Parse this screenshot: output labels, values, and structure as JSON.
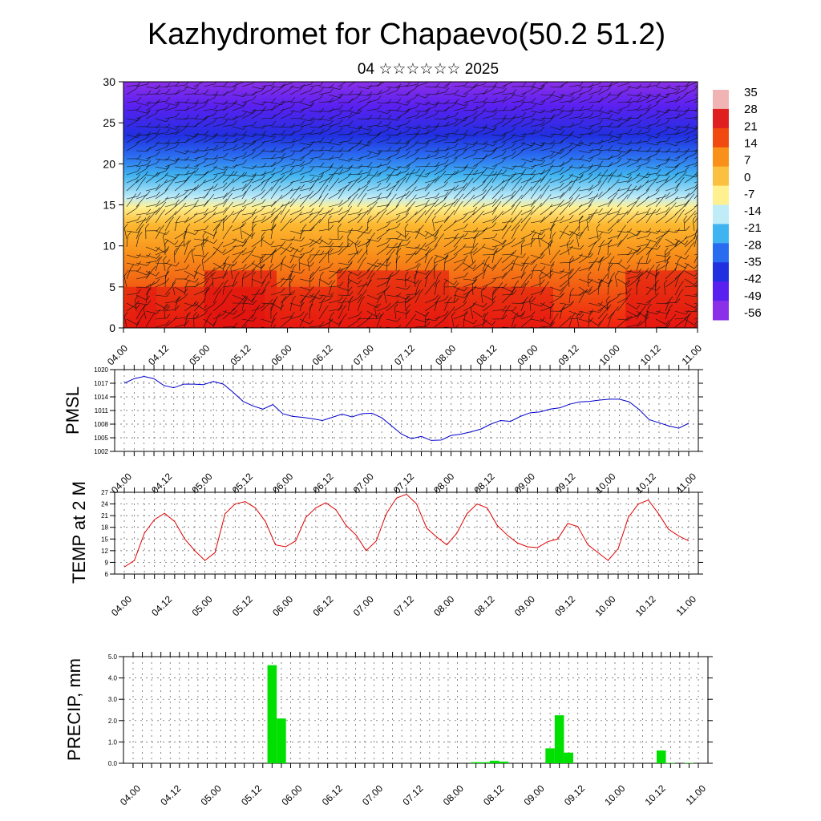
{
  "title": "Kazhydromet for Chapaevo(50.2 51.2)",
  "subtitle": "04 ☆☆☆☆☆☆ 2025",
  "x_tick_labels": [
    "04.00",
    "04.12",
    "05.00",
    "05.12",
    "06.00",
    "06.12",
    "07.00",
    "07.12",
    "08.00",
    "08.12",
    "09.00",
    "09.12",
    "10.00",
    "10.12",
    "11.00"
  ],
  "colorbar": {
    "labels": [
      "35",
      "28",
      "21",
      "14",
      "7",
      "0",
      "-7",
      "-14",
      "-21",
      "-28",
      "-35",
      "-42",
      "-49",
      "-56"
    ],
    "colors": [
      "#f0b4b4",
      "#e02020",
      "#f04a10",
      "#f8901a",
      "#fcc040",
      "#fff090",
      "#c0ecf8",
      "#40b4f0",
      "#2a6cf0",
      "#2030e0",
      "#5a20f0",
      "#8a30e8"
    ]
  },
  "chart_data": [
    {
      "type": "heatmap",
      "ylim": [
        0,
        30
      ],
      "y_ticks": [
        0,
        5,
        10,
        15,
        20,
        25,
        30
      ],
      "xlim": [
        0,
        168
      ],
      "description_levels": "temperature cross-section with wind barbs",
      "x_tick_labels": [
        "04.00",
        "04.12",
        "05.00",
        "05.12",
        "06.00",
        "06.12",
        "07.00",
        "07.12",
        "08.00",
        "08.12",
        "09.00",
        "09.12",
        "10.00",
        "10.12",
        "11.00"
      ]
    },
    {
      "type": "line",
      "ylabel": "PMSL",
      "ylim": [
        1002,
        1020
      ],
      "y_ticks": [
        1002,
        1005,
        1008,
        1011,
        1014,
        1017,
        1020
      ],
      "x_tick_labels": [
        "04.00",
        "04.12",
        "05.00",
        "05.12",
        "06.00",
        "06.12",
        "07.00",
        "07.12",
        "08.00",
        "08.12",
        "09.00",
        "09.12",
        "10.00",
        "10.12",
        "11.00"
      ],
      "series": [
        {
          "color": "#0000cc",
          "values": [
            1017,
            1018,
            1018.5,
            1018,
            1016.5,
            1016,
            1016.8,
            1016.8,
            1016.7,
            1017.4,
            1016.8,
            1015,
            1013,
            1012,
            1011.3,
            1012.3,
            1010.3,
            1009.7,
            1009.5,
            1009.2,
            1008.8,
            1009.5,
            1010.2,
            1009.6,
            1010.3,
            1010.4,
            1009.4,
            1007.6,
            1005.8,
            1004.8,
            1005.3,
            1004.4,
            1004.5,
            1005.5,
            1005.8,
            1006.3,
            1006.9,
            1008,
            1008.8,
            1008.6,
            1009.7,
            1010.5,
            1010.7,
            1011.3,
            1011.6,
            1012.4,
            1012.9,
            1013,
            1013.3,
            1013.5,
            1013.5,
            1012.9,
            1011.2,
            1009,
            1008.3,
            1007.6,
            1007.1,
            1008.2
          ]
        }
      ]
    },
    {
      "type": "line",
      "ylabel": "TEMP at 2 M",
      "ylim": [
        6,
        27
      ],
      "y_ticks": [
        6,
        9,
        12,
        15,
        18,
        21,
        24,
        27
      ],
      "x_tick_labels": [
        "04.00",
        "04.12",
        "05.00",
        "05.12",
        "06.00",
        "06.12",
        "07.00",
        "07.12",
        "08.00",
        "08.12",
        "09.00",
        "09.12",
        "10.00",
        "10.12",
        "11.00"
      ],
      "series": [
        {
          "color": "#e00000",
          "values": [
            7.8,
            9.5,
            16.5,
            20,
            21.6,
            19.5,
            15,
            12,
            9.5,
            11.5,
            21.5,
            24,
            24.6,
            23,
            19.5,
            13.5,
            13,
            14.5,
            20.5,
            23,
            24.3,
            22.5,
            18.5,
            16,
            12,
            14.5,
            21.5,
            25.5,
            26.5,
            24,
            17.8,
            15.5,
            13.5,
            16.5,
            21.5,
            24,
            23,
            18.5,
            16,
            14,
            13,
            12.8,
            14.3,
            15,
            19,
            18.2,
            13.5,
            11.5,
            9.5,
            12.5,
            20.5,
            24,
            25,
            21.5,
            17.5,
            15.8,
            14.5
          ]
        }
      ]
    },
    {
      "type": "bar",
      "ylabel": "PRECIP, mm",
      "ylim": [
        0,
        5
      ],
      "y_ticks": [
        "0.0",
        "1.0",
        "2.0",
        "3.0",
        "4.0",
        "5.0"
      ],
      "x_tick_labels": [
        "04.00",
        "04.12",
        "05.00",
        "05.12",
        "06.00",
        "06.12",
        "07.00",
        "07.12",
        "08.00",
        "08.12",
        "09.00",
        "09.12",
        "10.00",
        "10.12",
        "11.00"
      ],
      "bar_color": "#00e000",
      "series": [
        {
          "values": [
            0,
            0,
            0,
            0,
            0,
            0,
            0,
            0,
            0,
            0,
            0,
            0,
            0,
            0,
            0,
            4.6,
            2.1,
            0,
            0,
            0,
            0,
            0,
            0,
            0,
            0,
            0,
            0,
            0,
            0,
            0,
            0,
            0,
            0,
            0,
            0,
            0,
            0,
            0.05,
            0.05,
            0.12,
            0.08,
            0,
            0,
            0,
            0,
            0.7,
            2.25,
            0.5,
            0,
            0,
            0,
            0,
            0,
            0,
            0,
            0,
            0,
            0.6,
            0.02,
            0,
            0.02,
            0
          ]
        }
      ]
    }
  ]
}
